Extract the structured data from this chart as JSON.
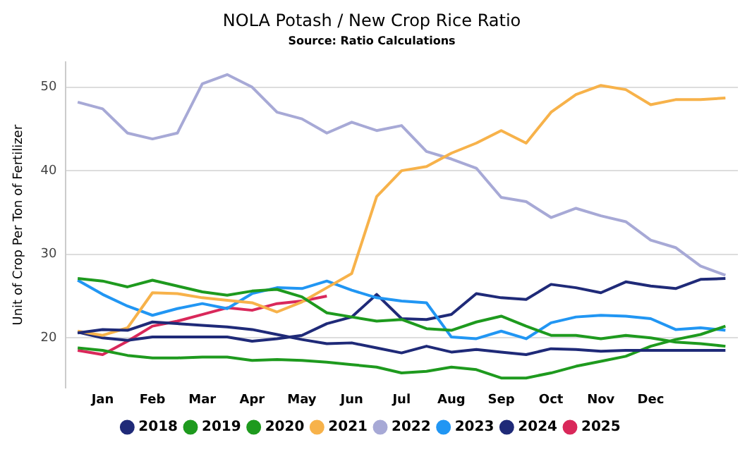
{
  "chart_data": {
    "type": "line",
    "title": "NOLA Potash / New Crop Rice Ratio",
    "subtitle": "Source: Ratio Calculations",
    "ylabel": "Unit of Crop Per Ton of Fertilizer",
    "categories": [
      null,
      "Jan",
      null,
      "Feb",
      null,
      "Mar",
      null,
      "Apr",
      null,
      "May",
      null,
      "Jun",
      null,
      "Jul",
      null,
      "Aug",
      null,
      "Sep",
      null,
      "Oct",
      null,
      "Nov",
      null,
      "Dec",
      null,
      null,
      null
    ],
    "ylim": [
      14,
      53
    ],
    "yticks": [
      20,
      30,
      40,
      50
    ],
    "grid": "y",
    "legend": "bottom",
    "series": [
      {
        "name": "2018",
        "color": "#1f2a78",
        "values": [
          20.6,
          21.0,
          20.9,
          21.9,
          21.7,
          21.5,
          21.3,
          21.0,
          20.4,
          19.8,
          19.3,
          19.4,
          18.8,
          18.2,
          19.0,
          18.3,
          18.6,
          18.3,
          18.0,
          18.7,
          18.6,
          18.4,
          18.5,
          18.5,
          18.5,
          18.5,
          18.5
        ]
      },
      {
        "name": "2019",
        "color": "#1e9a1e",
        "values": [
          18.8,
          18.5,
          17.9,
          17.6,
          17.6,
          17.7,
          17.7,
          17.3,
          17.4,
          17.3,
          17.1,
          16.8,
          16.5,
          15.8,
          16.0,
          16.5,
          16.2,
          15.2,
          15.2,
          15.8,
          16.6,
          17.2,
          17.8,
          19.0,
          19.8,
          20.4,
          21.4
        ]
      },
      {
        "name": "2020",
        "color": "#1e9a1e",
        "values": [
          27.1,
          26.8,
          26.1,
          26.9,
          26.2,
          25.5,
          25.1,
          25.6,
          25.8,
          24.9,
          23.0,
          22.5,
          22.0,
          22.2,
          21.1,
          20.9,
          21.9,
          22.6,
          21.4,
          20.3,
          20.3,
          19.9,
          20.3,
          20.0,
          19.5,
          19.3,
          19.0
        ]
      },
      {
        "name": "2021",
        "color": "#f7b24a",
        "values": [
          20.8,
          20.3,
          21.2,
          25.4,
          25.3,
          24.8,
          24.5,
          24.2,
          23.1,
          24.3,
          26.0,
          27.7,
          36.9,
          40.0,
          40.5,
          42.1,
          43.3,
          44.8,
          43.3,
          47.0,
          49.1,
          50.2,
          49.7,
          47.9,
          48.5,
          48.5,
          48.7
        ]
      },
      {
        "name": "2022",
        "color": "#a7a9d6",
        "values": [
          48.2,
          47.4,
          44.5,
          43.8,
          44.5,
          50.4,
          51.5,
          50.0,
          47.0,
          46.2,
          44.5,
          45.8,
          44.8,
          45.4,
          42.3,
          41.4,
          40.3,
          36.8,
          36.3,
          34.4,
          35.5,
          34.6,
          33.9,
          31.7,
          30.8,
          28.6,
          27.5
        ]
      },
      {
        "name": "2023",
        "color": "#2196f3",
        "values": [
          26.9,
          25.2,
          23.8,
          22.7,
          23.5,
          24.1,
          23.5,
          25.3,
          26.0,
          25.9,
          26.8,
          25.7,
          24.8,
          24.4,
          24.2,
          20.1,
          19.9,
          20.8,
          19.9,
          21.8,
          22.5,
          22.7,
          22.6,
          22.3,
          21.0,
          21.2,
          20.9
        ]
      },
      {
        "name": "2024",
        "color": "#1f2a78",
        "values": [
          20.7,
          20.0,
          19.7,
          20.1,
          20.1,
          20.1,
          20.1,
          19.6,
          19.9,
          20.3,
          21.7,
          22.5,
          25.2,
          22.3,
          22.2,
          22.8,
          25.3,
          24.8,
          24.6,
          26.4,
          26.0,
          25.4,
          26.7,
          26.2,
          25.9,
          27.0,
          27.1
        ]
      },
      {
        "name": "2025",
        "color": "#d9285a",
        "values": [
          18.5,
          18.0,
          19.6,
          21.4,
          22.0,
          22.8,
          23.6,
          23.3,
          24.1,
          24.4,
          25.0,
          null,
          null,
          null,
          null,
          null,
          null,
          null,
          null,
          null,
          null,
          null,
          null,
          null,
          null,
          null,
          null
        ]
      }
    ]
  }
}
